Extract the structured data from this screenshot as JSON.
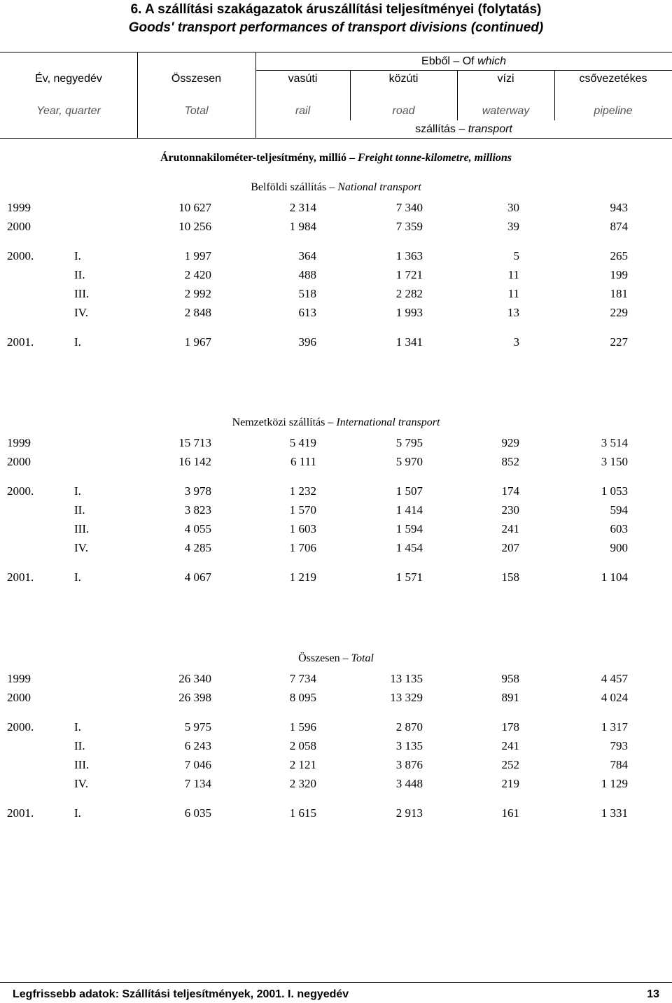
{
  "title": {
    "hu": "6. A szállítási szakágazatok áruszállítási teljesítményei (folytatás)",
    "en": "Goods' transport performances of transport divisions (continued)"
  },
  "header": {
    "of_which_hu": "Ebből",
    "of_which_en_a": "Of",
    "of_which_en_b": "which",
    "year_hu": "Év, negyedév",
    "year_en": "Year, quarter",
    "total_hu": "Összesen",
    "total_en": "Total",
    "rail_hu": "vasúti",
    "rail_en": "rail",
    "road_hu": "közúti",
    "road_en": "road",
    "water_hu": "vízi",
    "water_en": "waterway",
    "pipe_hu": "csővezetékes",
    "pipe_en": "pipeline",
    "transport_hu": "szállítás",
    "transport_en": "transport"
  },
  "unit": {
    "hu": "Árutonnakilométer-teljesítmény, millió",
    "en": "Freight tonne-kilometre, millions"
  },
  "sections": [
    {
      "title_hu": "Belföldi szállítás",
      "title_en": "National transport",
      "rows": [
        {
          "year": "1999",
          "q": "",
          "total": "10 627",
          "rail": "2 314",
          "road": "7 340",
          "water": "30",
          "pipe": "943"
        },
        {
          "year": "2000",
          "q": "",
          "total": "10 256",
          "rail": "1 984",
          "road": "7 359",
          "water": "39",
          "pipe": "874"
        },
        {
          "year": "2000.",
          "q": "I.",
          "total": "1 997",
          "rail": "364",
          "road": "1 363",
          "water": "5",
          "pipe": "265"
        },
        {
          "year": "",
          "q": "II.",
          "total": "2 420",
          "rail": "488",
          "road": "1 721",
          "water": "11",
          "pipe": "199"
        },
        {
          "year": "",
          "q": "III.",
          "total": "2 992",
          "rail": "518",
          "road": "2 282",
          "water": "11",
          "pipe": "181"
        },
        {
          "year": "",
          "q": "IV.",
          "total": "2 848",
          "rail": "613",
          "road": "1 993",
          "water": "13",
          "pipe": "229"
        },
        {
          "year": "2001.",
          "q": "I.",
          "total": "1 967",
          "rail": "396",
          "road": "1 341",
          "water": "3",
          "pipe": "227"
        }
      ]
    },
    {
      "title_hu": "Nemzetközi szállítás",
      "title_en": "International transport",
      "rows": [
        {
          "year": "1999",
          "q": "",
          "total": "15 713",
          "rail": "5 419",
          "road": "5 795",
          "water": "929",
          "pipe": "3 514"
        },
        {
          "year": "2000",
          "q": "",
          "total": "16 142",
          "rail": "6 111",
          "road": "5 970",
          "water": "852",
          "pipe": "3 150"
        },
        {
          "year": "2000.",
          "q": "I.",
          "total": "3 978",
          "rail": "1 232",
          "road": "1 507",
          "water": "174",
          "pipe": "1 053"
        },
        {
          "year": "",
          "q": "II.",
          "total": "3 823",
          "rail": "1 570",
          "road": "1 414",
          "water": "230",
          "pipe": "594"
        },
        {
          "year": "",
          "q": "III.",
          "total": "4 055",
          "rail": "1 603",
          "road": "1 594",
          "water": "241",
          "pipe": "603"
        },
        {
          "year": "",
          "q": "IV.",
          "total": "4 285",
          "rail": "1 706",
          "road": "1 454",
          "water": "207",
          "pipe": "900"
        },
        {
          "year": "2001.",
          "q": "I.",
          "total": "4 067",
          "rail": "1 219",
          "road": "1 571",
          "water": "158",
          "pipe": "1 104"
        }
      ]
    },
    {
      "title_hu": "Összesen",
      "title_en": "Total",
      "rows": [
        {
          "year": "1999",
          "q": "",
          "total": "26 340",
          "rail": "7 734",
          "road": "13 135",
          "water": "958",
          "pipe": "4 457"
        },
        {
          "year": "2000",
          "q": "",
          "total": "26 398",
          "rail": "8 095",
          "road": "13 329",
          "water": "891",
          "pipe": "4 024"
        },
        {
          "year": "2000.",
          "q": "I.",
          "total": "5 975",
          "rail": "1 596",
          "road": "2 870",
          "water": "178",
          "pipe": "1 317"
        },
        {
          "year": "",
          "q": "II.",
          "total": "6 243",
          "rail": "2 058",
          "road": "3 135",
          "water": "241",
          "pipe": "793"
        },
        {
          "year": "",
          "q": "III.",
          "total": "7 046",
          "rail": "2 121",
          "road": "3 876",
          "water": "252",
          "pipe": "784"
        },
        {
          "year": "",
          "q": "IV.",
          "total": "7 134",
          "rail": "2 320",
          "road": "3 448",
          "water": "219",
          "pipe": "1 129"
        },
        {
          "year": "2001.",
          "q": "I.",
          "total": "6 035",
          "rail": "1 615",
          "road": "2 913",
          "water": "161",
          "pipe": "1 331"
        }
      ]
    }
  ],
  "footer": {
    "source": "Legfrissebb adatok: Szállítási teljesítmények, 2001. I. negyedév",
    "page": "13"
  }
}
